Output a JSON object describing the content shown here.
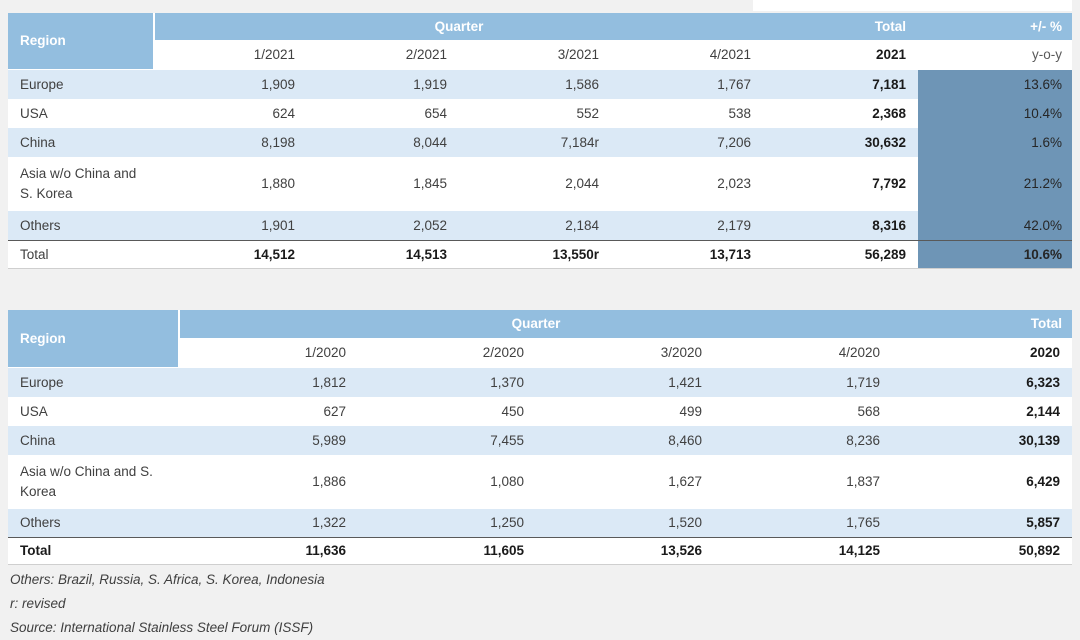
{
  "colors": {
    "header_blue": "#93bedf",
    "stripe_blue": "#dbe9f6",
    "accent_steel_blue": "#6e95b6",
    "page_background": "#f1f1f1"
  },
  "table_2021": {
    "region_label": "Region",
    "quarter_label": "Quarter",
    "total_label": "Total",
    "pct_label": "+/- %",
    "quarters": [
      "1/2021",
      "2/2021",
      "3/2021",
      "4/2021"
    ],
    "year_total_label": "2021",
    "yoy_label": "y-o-y",
    "rows": [
      {
        "region": "Europe",
        "q1": "1,909",
        "q2": "1,919",
        "q3": "1,586",
        "q4": "1,767",
        "total": "7,181",
        "pct": "13.6%"
      },
      {
        "region": "USA",
        "q1": "624",
        "q2": "654",
        "q3": "552",
        "q4": "538",
        "total": "2,368",
        "pct": "10.4%"
      },
      {
        "region": "China",
        "q1": "8,198",
        "q2": "8,044",
        "q3": "7,184r",
        "q4": "7,206",
        "total": "30,632",
        "pct": "1.6%"
      },
      {
        "region": "Asia w/o China and\nS. Korea",
        "q1": "1,880",
        "q2": "1,845",
        "q3": "2,044",
        "q4": "2,023",
        "total": "7,792",
        "pct": "21.2%"
      },
      {
        "region": "Others",
        "q1": "1,901",
        "q2": "2,052",
        "q3": "2,184",
        "q4": "2,179",
        "total": "8,316",
        "pct": "42.0%"
      },
      {
        "region": "Total",
        "q1": "14,512",
        "q2": "14,513",
        "q3": "13,550r",
        "q4": "13,713",
        "total": "56,289",
        "pct": "10.6%"
      }
    ]
  },
  "table_2020": {
    "region_label": "Region",
    "quarter_label": "Quarter",
    "total_label": "Total",
    "quarters": [
      "1/2020",
      "2/2020",
      "3/2020",
      "4/2020"
    ],
    "year_total_label": "2020",
    "rows": [
      {
        "region": "Europe",
        "q1": "1,812",
        "q2": "1,370",
        "q3": "1,421",
        "q4": "1,719",
        "total": "6,323"
      },
      {
        "region": "USA",
        "q1": "627",
        "q2": "450",
        "q3": "499",
        "q4": "568",
        "total": "2,144"
      },
      {
        "region": "China",
        "q1": "5,989",
        "q2": "7,455",
        "q3": "8,460",
        "q4": "8,236",
        "total": "30,139"
      },
      {
        "region": "Asia w/o China and S.\nKorea",
        "q1": "1,886",
        "q2": "1,080",
        "q3": "1,627",
        "q4": "1,837",
        "total": "6,429"
      },
      {
        "region": "Others",
        "q1": "1,322",
        "q2": "1,250",
        "q3": "1,520",
        "q4": "1,765",
        "total": "5,857"
      },
      {
        "region": "Total",
        "q1": "11,636",
        "q2": "11,605",
        "q3": "13,526",
        "q4": "14,125",
        "total": "50,892"
      }
    ]
  },
  "footnotes": [
    "Others: Brazil, Russia, S. Africa, S. Korea, Indonesia",
    "r: revised",
    "Source: International Stainless Steel Forum (ISSF)"
  ],
  "chart_data": [
    {
      "type": "table",
      "title": "",
      "columns": [
        "Region",
        "1/2021",
        "2/2021",
        "3/2021",
        "4/2021",
        "Total 2021",
        "+/- % y-o-y"
      ],
      "rows": [
        [
          "Europe",
          1909,
          1919,
          1586,
          1767,
          7181,
          13.6
        ],
        [
          "USA",
          624,
          654,
          552,
          538,
          2368,
          10.4
        ],
        [
          "China",
          8198,
          8044,
          7184,
          7206,
          30632,
          1.6
        ],
        [
          "Asia w/o China and S. Korea",
          1880,
          1845,
          2044,
          2023,
          7792,
          21.2
        ],
        [
          "Others",
          1901,
          2052,
          2184,
          2179,
          8316,
          42.0
        ],
        [
          "Total",
          14512,
          14513,
          13550,
          13713,
          56289,
          10.6
        ]
      ],
      "notes": "3/2021 values for China (7,184) and Total (13,550) are revised (r); +/- % in percent"
    },
    {
      "type": "table",
      "title": "",
      "columns": [
        "Region",
        "1/2020",
        "2/2020",
        "3/2020",
        "4/2020",
        "Total 2020"
      ],
      "rows": [
        [
          "Europe",
          1812,
          1370,
          1421,
          1719,
          6323
        ],
        [
          "USA",
          627,
          450,
          499,
          568,
          2144
        ],
        [
          "China",
          5989,
          7455,
          8460,
          8236,
          30139
        ],
        [
          "Asia w/o China and S. Korea",
          1886,
          1080,
          1627,
          1837,
          6429
        ],
        [
          "Others",
          1322,
          1250,
          1520,
          1765,
          5857
        ],
        [
          "Total",
          11636,
          11605,
          13526,
          14125,
          50892
        ]
      ]
    }
  ]
}
